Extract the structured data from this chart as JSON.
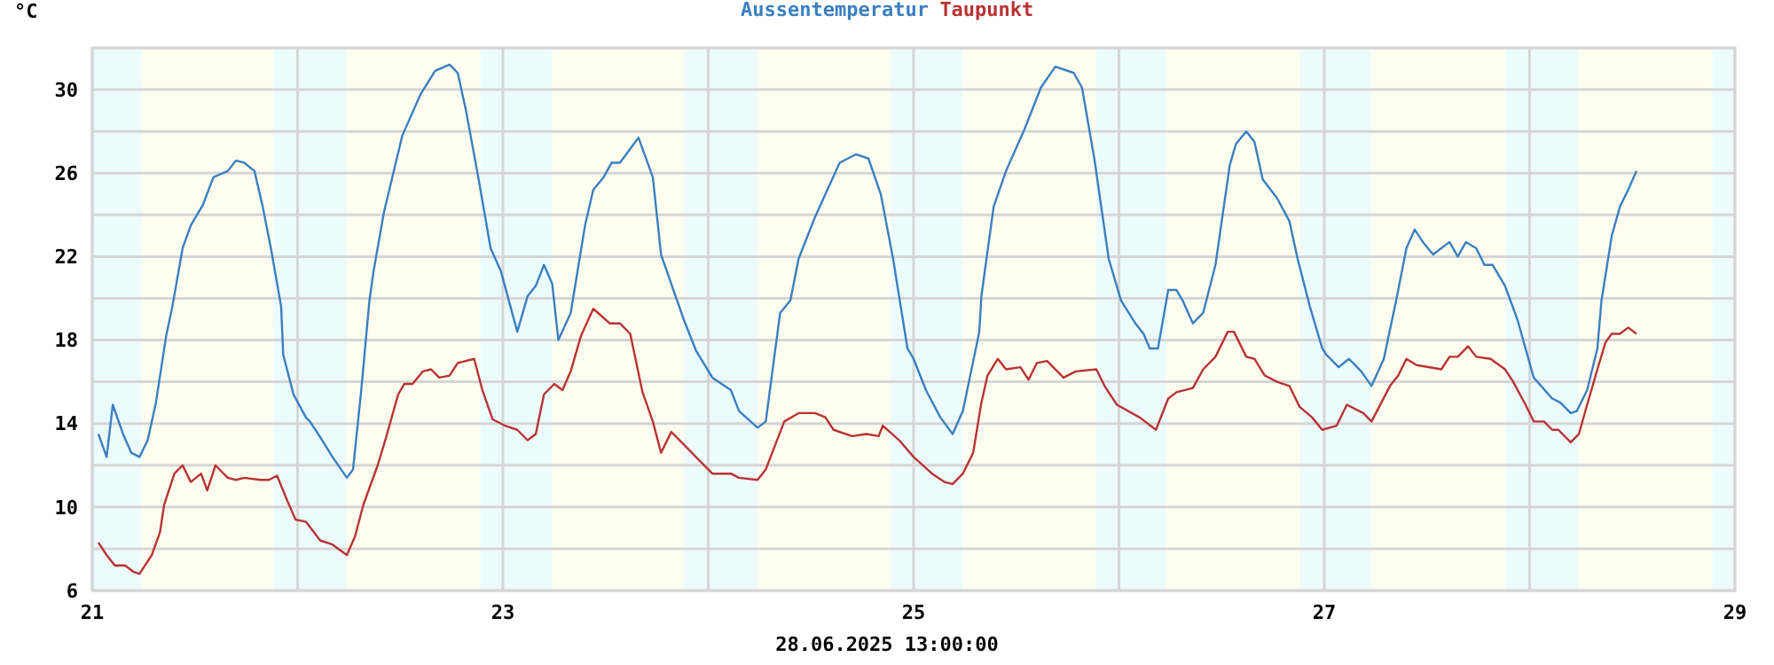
{
  "chart_data": {
    "type": "line",
    "ylabel": "°C",
    "annotations": [
      "28.06.2025 13:00:00"
    ],
    "legend": "top",
    "grid": true,
    "line_style": "solid",
    "marker": "none",
    "xlim": [
      21,
      29
    ],
    "xticks": [
      21,
      {
        "value": 22,
        "label": null
      },
      23,
      {
        "value": 24,
        "label": null
      },
      25,
      {
        "value": 26,
        "label": null
      },
      27,
      {
        "value": 28,
        "label": null
      },
      29
    ],
    "ylim": [
      6,
      32
    ],
    "yticks": [
      6,
      {
        "value": 8,
        "label": null
      },
      10,
      {
        "value": 12,
        "label": null
      },
      14,
      {
        "value": 16,
        "label": null
      },
      18,
      {
        "value": 20,
        "label": null
      },
      22,
      {
        "value": 24,
        "label": null
      },
      26,
      {
        "value": 28,
        "label": null
      },
      30,
      {
        "value": 32,
        "label": null
      }
    ],
    "bands": [
      {
        "axis": "x",
        "from": 21,
        "to": 21.24,
        "color": "#ecfcfd"
      },
      {
        "axis": "x",
        "from": 21.24,
        "to": 21.88,
        "color": "#fefef0"
      },
      {
        "axis": "x",
        "from": 21.88,
        "to": 22.24,
        "color": "#ecfcfd"
      },
      {
        "axis": "x",
        "from": 22.24,
        "to": 22.89,
        "color": "#fefef0"
      },
      {
        "axis": "x",
        "from": 22.89,
        "to": 23.24,
        "color": "#ecfcfd"
      },
      {
        "axis": "x",
        "from": 23.24,
        "to": 23.88,
        "color": "#fefef0"
      },
      {
        "axis": "x",
        "from": 23.88,
        "to": 24.24,
        "color": "#ecfcfd"
      },
      {
        "axis": "x",
        "from": 24.24,
        "to": 24.89,
        "color": "#fefef0"
      },
      {
        "axis": "x",
        "from": 24.89,
        "to": 25.24,
        "color": "#ecfcfd"
      },
      {
        "axis": "x",
        "from": 25.24,
        "to": 25.89,
        "color": "#fefef0"
      },
      {
        "axis": "x",
        "from": 25.89,
        "to": 26.23,
        "color": "#ecfcfd"
      },
      {
        "axis": "x",
        "from": 26.23,
        "to": 26.88,
        "color": "#fefef0"
      },
      {
        "axis": "x",
        "from": 26.88,
        "to": 27.23,
        "color": "#ecfcfd"
      },
      {
        "axis": "x",
        "from": 27.23,
        "to": 27.88,
        "color": "#fefef0"
      },
      {
        "axis": "x",
        "from": 27.88,
        "to": 28.24,
        "color": "#ecfcfd"
      },
      {
        "axis": "x",
        "from": 28.24,
        "to": 28.89,
        "color": "#fefef0"
      },
      {
        "axis": "x",
        "from": 28.89,
        "to": 29,
        "color": "#ecfcfd"
      }
    ],
    "series": [
      {
        "name": "Aussentemperatur",
        "color": "#3a7fc0",
        "x": [
          21.03,
          21.07,
          21.1,
          21.15,
          21.19,
          21.23,
          21.27,
          21.31,
          21.36,
          21.39,
          21.44,
          21.48,
          21.54,
          21.59,
          21.66,
          21.7,
          21.74,
          21.79,
          21.83,
          21.87,
          21.92,
          21.93,
          21.98,
          22.04,
          22.06,
          22.12,
          22.17,
          22.24,
          22.27,
          22.31,
          22.35,
          22.37,
          22.42,
          22.51,
          22.6,
          22.67,
          22.74,
          22.78,
          22.82,
          22.88,
          22.94,
          22.99,
          23.07,
          23.12,
          23.16,
          23.2,
          23.24,
          23.27,
          23.33,
          23.4,
          23.44,
          23.49,
          23.53,
          23.57,
          23.66,
          23.73,
          23.77,
          23.88,
          23.94,
          24.02,
          24.11,
          24.15,
          24.24,
          24.28,
          24.35,
          24.4,
          24.44,
          24.52,
          24.64,
          24.72,
          24.78,
          24.84,
          24.9,
          24.97,
          25,
          25.06,
          25.13,
          25.19,
          25.24,
          25.32,
          25.33,
          25.39,
          25.45,
          25.54,
          25.62,
          25.69,
          25.78,
          25.82,
          25.88,
          25.95,
          26.01,
          26.08,
          26.12,
          26.15,
          26.19,
          26.24,
          26.28,
          26.31,
          26.36,
          26.41,
          26.47,
          26.54,
          26.57,
          26.62,
          26.66,
          26.7,
          26.77,
          26.83,
          26.87,
          26.93,
          26.99,
          27.01,
          27.07,
          27.12,
          27.18,
          27.23,
          27.29,
          27.35,
          27.4,
          27.44,
          27.48,
          27.53,
          27.61,
          27.65,
          27.69,
          27.74,
          27.78,
          27.82,
          27.88,
          27.94,
          27.98,
          28.02,
          28.11,
          28.15,
          28.2,
          28.23,
          28.28,
          28.33,
          28.35,
          28.4,
          28.44,
          28.48,
          28.52
        ],
        "values": [
          13.5,
          12.4,
          14.9,
          13.5,
          12.6,
          12.4,
          13.2,
          15,
          18.2,
          19.6,
          22.4,
          23.5,
          24.5,
          25.8,
          26.1,
          26.6,
          26.5,
          26.1,
          24.4,
          22.4,
          19.6,
          17.3,
          15.4,
          14.3,
          14.1,
          13.2,
          12.4,
          11.4,
          11.8,
          15.6,
          19.9,
          21.3,
          24.1,
          27.8,
          29.8,
          30.9,
          31.2,
          30.8,
          29,
          25.8,
          22.4,
          21.3,
          18.4,
          20.1,
          20.6,
          21.6,
          20.7,
          18,
          19.3,
          23.5,
          25.2,
          25.8,
          26.5,
          26.5,
          27.7,
          25.8,
          22.1,
          19,
          17.5,
          16.2,
          15.6,
          14.6,
          13.8,
          14.1,
          19.3,
          19.9,
          21.9,
          23.9,
          26.5,
          26.9,
          26.7,
          25,
          21.9,
          17.6,
          17.1,
          15.6,
          14.3,
          13.5,
          14.6,
          18.4,
          20.1,
          24.4,
          26.1,
          28.1,
          30.1,
          31.1,
          30.8,
          30.1,
          26.7,
          21.9,
          19.9,
          18.8,
          18.3,
          17.6,
          17.6,
          20.4,
          20.4,
          19.9,
          18.8,
          19.3,
          21.6,
          26.4,
          27.4,
          28,
          27.5,
          25.7,
          24.8,
          23.7,
          21.9,
          19.6,
          17.6,
          17.3,
          16.7,
          17.1,
          16.5,
          15.8,
          17.1,
          19.9,
          22.4,
          23.3,
          22.7,
          22.1,
          22.7,
          22,
          22.7,
          22.4,
          21.6,
          21.6,
          20.6,
          19,
          17.6,
          16.2,
          15.2,
          15,
          14.5,
          14.6,
          15.6,
          17.6,
          19.9,
          23,
          24.4,
          25.2,
          26.1
        ]
      },
      {
        "name": "Taupunkt",
        "color": "#b83333",
        "x": [
          21.03,
          21.07,
          21.11,
          21.16,
          21.2,
          21.23,
          21.29,
          21.33,
          21.35,
          21.4,
          21.44,
          21.48,
          21.53,
          21.56,
          21.6,
          21.66,
          21.7,
          21.74,
          21.82,
          21.86,
          21.9,
          21.95,
          21.99,
          22.04,
          22.11,
          22.17,
          22.24,
          22.28,
          22.32,
          22.39,
          22.43,
          22.49,
          22.52,
          22.56,
          22.61,
          22.65,
          22.69,
          22.74,
          22.78,
          22.86,
          22.9,
          22.95,
          23.01,
          23.07,
          23.12,
          23.16,
          23.2,
          23.25,
          23.29,
          23.33,
          23.38,
          23.44,
          23.52,
          23.57,
          23.62,
          23.68,
          23.73,
          23.77,
          23.82,
          23.9,
          23.96,
          24.02,
          24.11,
          24.15,
          24.24,
          24.28,
          24.37,
          24.44,
          24.52,
          24.57,
          24.61,
          24.7,
          24.77,
          24.83,
          24.85,
          24.93,
          25,
          25.09,
          25.15,
          25.19,
          25.24,
          25.29,
          25.33,
          25.36,
          25.41,
          25.45,
          25.52,
          25.56,
          25.6,
          25.65,
          25.73,
          25.79,
          25.89,
          25.93,
          25.99,
          26.1,
          26.18,
          26.24,
          26.28,
          26.36,
          26.41,
          26.47,
          26.53,
          26.56,
          26.62,
          26.66,
          26.71,
          26.77,
          26.83,
          26.88,
          26.94,
          26.99,
          27.06,
          27.11,
          27.19,
          27.23,
          27.32,
          27.36,
          27.4,
          27.45,
          27.57,
          27.61,
          27.65,
          27.7,
          27.74,
          27.81,
          27.88,
          27.92,
          27.98,
          28.02,
          28.07,
          28.11,
          28.14,
          28.2,
          28.24,
          28.28,
          28.33,
          28.37,
          28.4,
          28.44,
          28.48,
          28.52
        ],
        "values": [
          8.3,
          7.7,
          7.2,
          7.2,
          6.9,
          6.8,
          7.7,
          8.8,
          10.1,
          11.6,
          12,
          11.2,
          11.6,
          10.8,
          12,
          11.4,
          11.3,
          11.4,
          11.3,
          11.3,
          11.5,
          10.3,
          9.4,
          9.3,
          8.4,
          8.2,
          7.7,
          8.6,
          10.1,
          12,
          13.3,
          15.4,
          15.9,
          15.9,
          16.5,
          16.6,
          16.2,
          16.3,
          16.9,
          17.1,
          15.6,
          14.2,
          13.9,
          13.7,
          13.2,
          13.5,
          15.4,
          15.9,
          15.6,
          16.5,
          18.2,
          19.5,
          18.8,
          18.8,
          18.3,
          15.5,
          14.1,
          12.6,
          13.6,
          12.8,
          12.2,
          11.6,
          11.6,
          11.4,
          11.3,
          11.8,
          14.1,
          14.5,
          14.5,
          14.3,
          13.7,
          13.4,
          13.5,
          13.4,
          13.9,
          13.2,
          12.4,
          11.6,
          11.2,
          11.1,
          11.6,
          12.6,
          15,
          16.3,
          17.1,
          16.6,
          16.7,
          16.1,
          16.9,
          17,
          16.2,
          16.5,
          16.6,
          15.8,
          14.9,
          14.3,
          13.7,
          15.2,
          15.5,
          15.7,
          16.6,
          17.2,
          18.4,
          18.4,
          17.2,
          17.1,
          16.3,
          16,
          15.8,
          14.8,
          14.3,
          13.7,
          13.9,
          14.9,
          14.5,
          14.1,
          15.8,
          16.3,
          17.1,
          16.8,
          16.6,
          17.2,
          17.2,
          17.7,
          17.2,
          17.1,
          16.6,
          16,
          14.9,
          14.1,
          14.1,
          13.7,
          13.7,
          13.1,
          13.5,
          14.9,
          16.6,
          17.9,
          18.3,
          18.3,
          18.6,
          18.3
        ]
      }
    ]
  }
}
